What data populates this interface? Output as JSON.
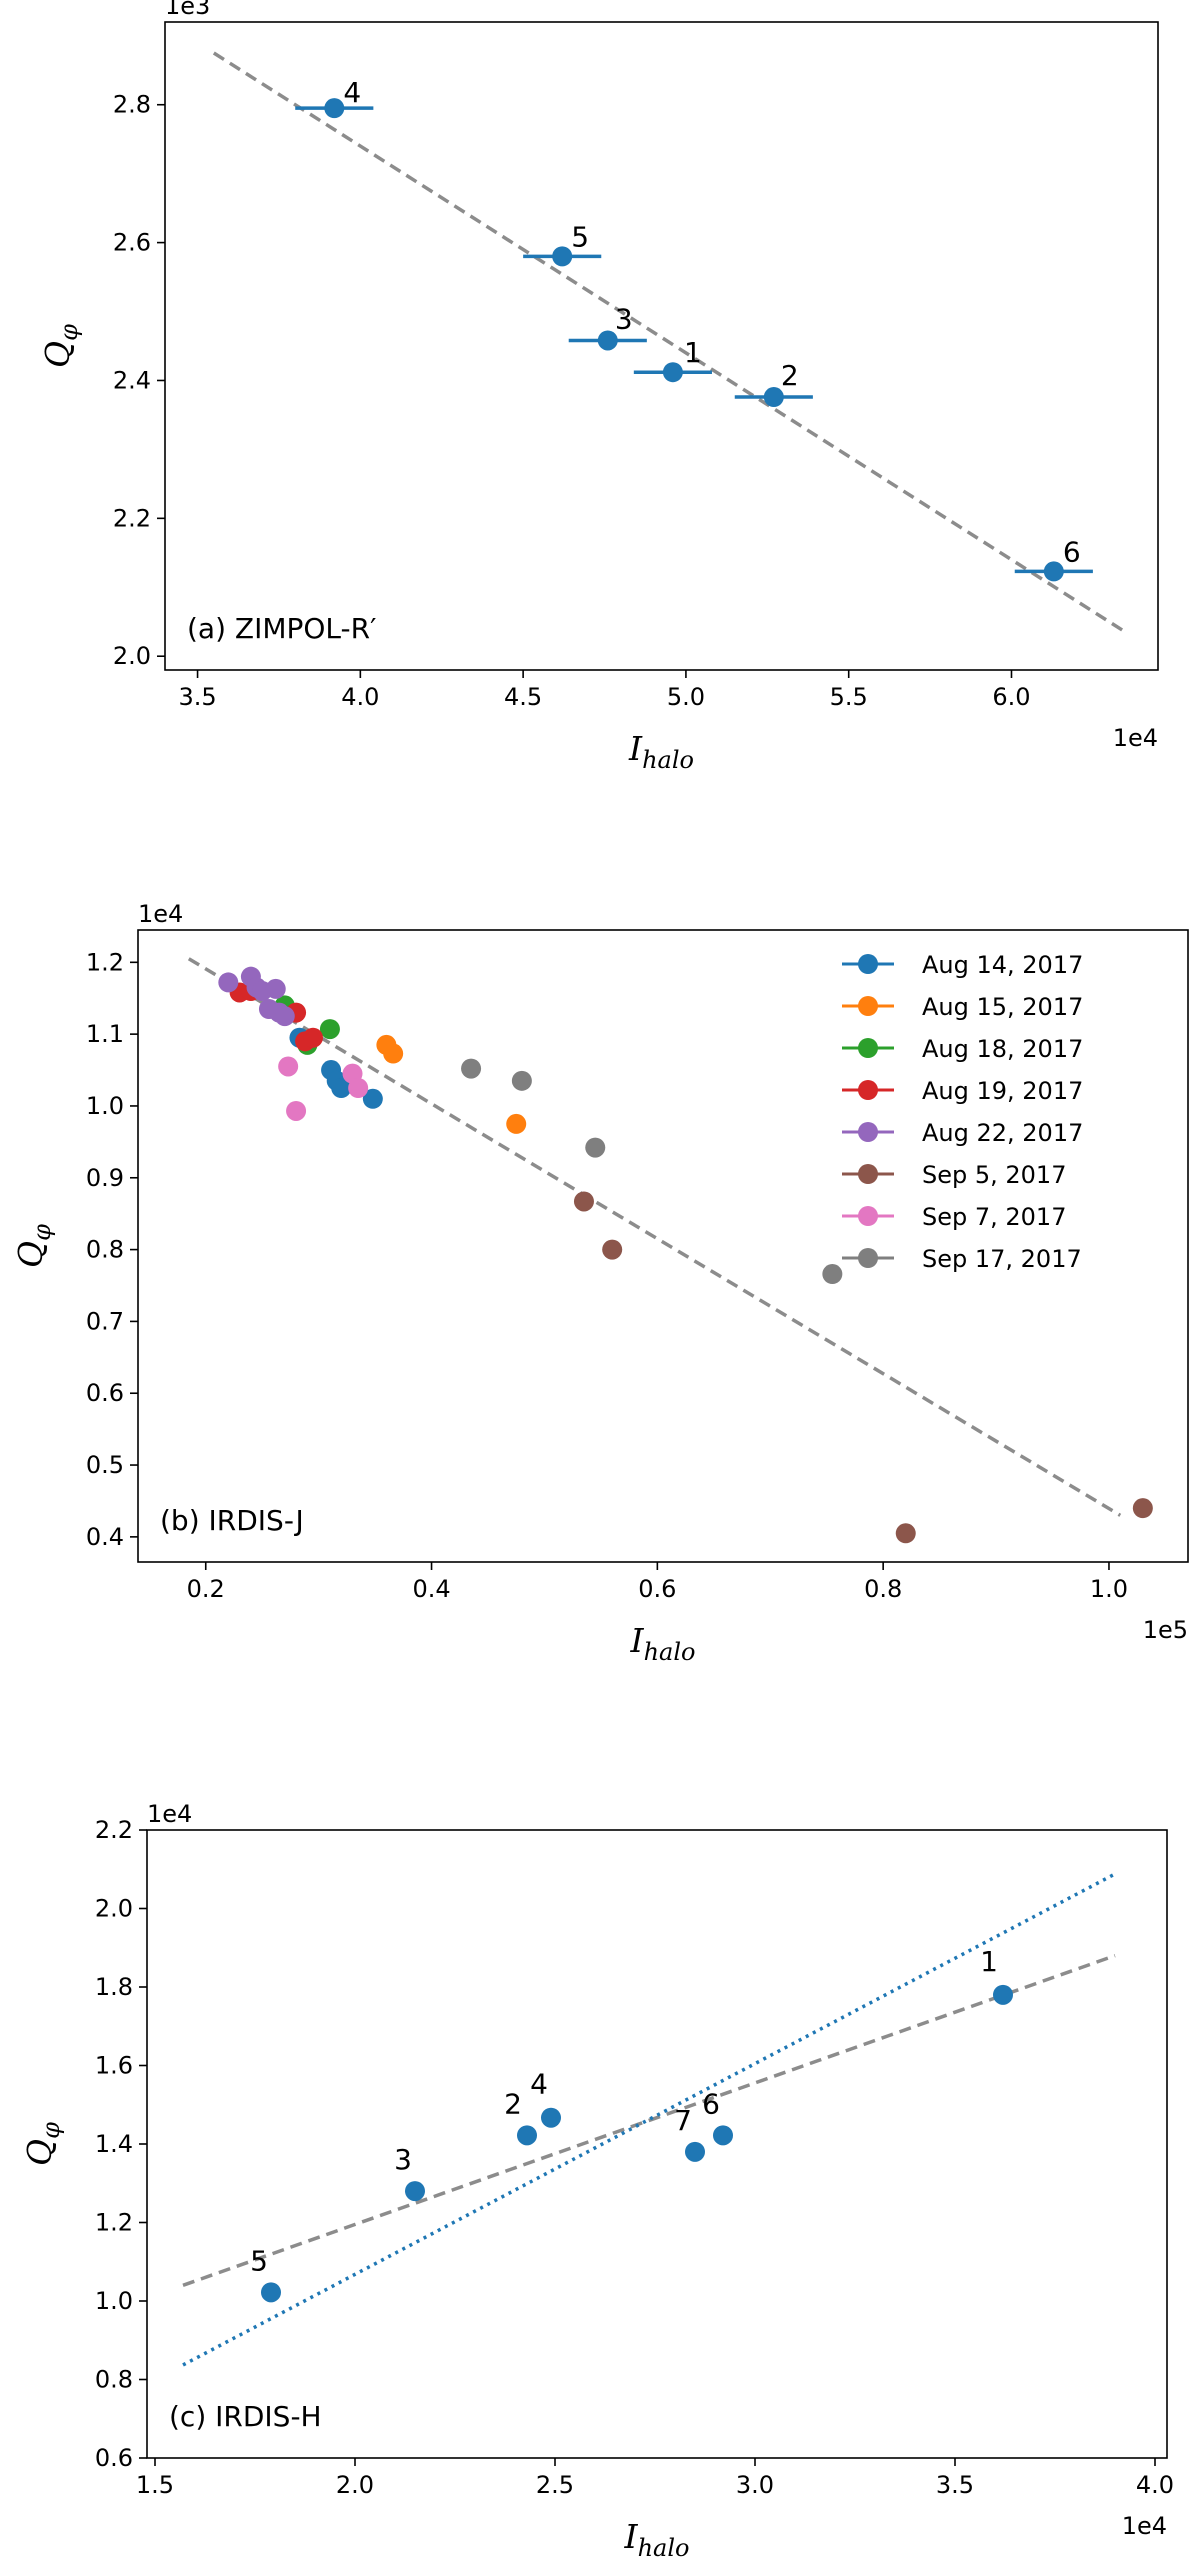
{
  "chart_data": [
    {
      "type": "scatter",
      "panel_label": "(a) ZIMPOL-R′",
      "xlabel_main": "I",
      "xlabel_sub": "halo",
      "ylabel_main": "Q",
      "ylabel_sub": "φ",
      "x_scale_label": "1e4",
      "y_scale_label": "1e3",
      "xlim": [
        3.4,
        6.45
      ],
      "ylim": [
        1.98,
        2.92
      ],
      "xticks": [
        3.5,
        4.0,
        4.5,
        5.0,
        5.5,
        6.0
      ],
      "xtick_labels": [
        "3.5",
        "4.0",
        "4.5",
        "5.0",
        "5.5",
        "6.0"
      ],
      "yticks": [
        2.0,
        2.2,
        2.4,
        2.6,
        2.8
      ],
      "ytick_labels": [
        "2.0",
        "2.2",
        "2.4",
        "2.6",
        "2.8"
      ],
      "marker_color": "#1f77b4",
      "fit_color": "#8c8c8c",
      "points": [
        {
          "label": "4",
          "x": 3.92,
          "y": 2.795,
          "xerr": 0.12
        },
        {
          "label": "5",
          "x": 4.62,
          "y": 2.58,
          "xerr": 0.12
        },
        {
          "label": "3",
          "x": 4.76,
          "y": 2.458,
          "xerr": 0.12
        },
        {
          "label": "1",
          "x": 4.96,
          "y": 2.412,
          "xerr": 0.12
        },
        {
          "label": "2",
          "x": 5.27,
          "y": 2.376,
          "xerr": 0.12
        },
        {
          "label": "6",
          "x": 6.13,
          "y": 2.123,
          "xerr": 0.12
        }
      ],
      "fit": [
        {
          "x": 3.55,
          "y": 2.875
        },
        {
          "x": 6.35,
          "y": 2.035
        }
      ]
    },
    {
      "type": "scatter",
      "panel_label": "(b) IRDIS-J",
      "xlabel_main": "I",
      "xlabel_sub": "halo",
      "ylabel_main": "Q",
      "ylabel_sub": "φ",
      "x_scale_label": "1e5",
      "y_scale_label": "1e4",
      "xlim": [
        0.14,
        1.07
      ],
      "ylim": [
        0.365,
        1.245
      ],
      "xticks": [
        0.2,
        0.4,
        0.6,
        0.8,
        1.0
      ],
      "xtick_labels": [
        "0.2",
        "0.4",
        "0.6",
        "0.8",
        "1.0"
      ],
      "yticks": [
        0.4,
        0.5,
        0.6,
        0.7,
        0.8,
        0.9,
        1.0,
        1.1,
        1.2
      ],
      "ytick_labels": [
        "0.4",
        "0.5",
        "0.6",
        "0.7",
        "0.8",
        "0.9",
        "1.0",
        "1.1",
        "1.2"
      ],
      "legend_position": "upper right",
      "fit_color": "#8c8c8c",
      "fit": [
        {
          "x": 0.185,
          "y": 1.205
        },
        {
          "x": 1.01,
          "y": 0.43
        }
      ],
      "series": [
        {
          "name": "Aug 14, 2017",
          "color": "#1f77b4",
          "points": [
            [
              0.283,
              1.095
            ],
            [
              0.311,
              1.05
            ],
            [
              0.316,
              1.035
            ],
            [
              0.32,
              1.025
            ],
            [
              0.348,
              1.01
            ]
          ]
        },
        {
          "name": "Aug 15, 2017",
          "color": "#ff7f0e",
          "points": [
            [
              0.36,
              1.085
            ],
            [
              0.366,
              1.073
            ],
            [
              0.475,
              0.975
            ]
          ]
        },
        {
          "name": "Aug 18, 2017",
          "color": "#2ca02c",
          "points": [
            [
              0.27,
              1.14
            ],
            [
              0.29,
              1.085
            ],
            [
              0.31,
              1.107
            ]
          ]
        },
        {
          "name": "Aug 19, 2017",
          "color": "#d62728",
          "points": [
            [
              0.23,
              1.158
            ],
            [
              0.24,
              1.16
            ],
            [
              0.28,
              1.13
            ],
            [
              0.288,
              1.09
            ],
            [
              0.295,
              1.095
            ]
          ]
        },
        {
          "name": "Aug 22, 2017",
          "color": "#9467bd",
          "points": [
            [
              0.22,
              1.172
            ],
            [
              0.24,
              1.18
            ],
            [
              0.245,
              1.165
            ],
            [
              0.25,
              1.16
            ],
            [
              0.256,
              1.135
            ],
            [
              0.262,
              1.163
            ],
            [
              0.265,
              1.13
            ],
            [
              0.27,
              1.125
            ]
          ]
        },
        {
          "name": "Sep 5, 2017",
          "color": "#8c564b",
          "points": [
            [
              0.535,
              0.867
            ],
            [
              0.56,
              0.8
            ],
            [
              0.82,
              0.405
            ],
            [
              1.03,
              0.44
            ]
          ]
        },
        {
          "name": "Sep 7, 2017",
          "color": "#e377c2",
          "points": [
            [
              0.273,
              1.055
            ],
            [
              0.28,
              0.993
            ],
            [
              0.33,
              1.045
            ],
            [
              0.335,
              1.025
            ]
          ]
        },
        {
          "name": "Sep 17, 2017",
          "color": "#7f7f7f",
          "points": [
            [
              0.435,
              1.052
            ],
            [
              0.48,
              1.035
            ],
            [
              0.545,
              0.942
            ],
            [
              0.755,
              0.766
            ]
          ]
        }
      ]
    },
    {
      "type": "scatter",
      "panel_label": "(c) IRDIS-H",
      "xlabel_main": "I",
      "xlabel_sub": "halo",
      "ylabel_main": "Q",
      "ylabel_sub": "φ",
      "x_scale_label": "1e4",
      "y_scale_label": "1e4",
      "xlim": [
        1.48,
        4.03
      ],
      "ylim": [
        0.6,
        2.2
      ],
      "xticks": [
        1.5,
        2.0,
        2.5,
        3.0,
        3.5,
        4.0
      ],
      "xtick_labels": [
        "1.5",
        "2.0",
        "2.5",
        "3.0",
        "3.5",
        "4.0"
      ],
      "yticks": [
        0.6,
        0.8,
        1.0,
        1.2,
        1.4,
        1.6,
        1.8,
        2.0,
        2.2
      ],
      "ytick_labels": [
        "0.6",
        "0.8",
        "1.0",
        "1.2",
        "1.4",
        "1.6",
        "1.8",
        "2.0",
        "2.2"
      ],
      "marker_color": "#1f77b4",
      "fit_color": "#8c8c8c",
      "fit2_color": "#1f77b4",
      "points": [
        {
          "label": "5",
          "x": 1.79,
          "y": 1.022
        },
        {
          "label": "3",
          "x": 2.15,
          "y": 1.28
        },
        {
          "label": "2",
          "x": 2.43,
          "y": 1.422
        },
        {
          "label": "4",
          "x": 2.49,
          "y": 1.467
        },
        {
          "label": "7",
          "x": 2.85,
          "y": 1.38
        },
        {
          "label": "6",
          "x": 2.92,
          "y": 1.422
        },
        {
          "label": "1",
          "x": 3.62,
          "y": 1.78
        }
      ],
      "fit": [
        {
          "x": 1.57,
          "y": 1.04
        },
        {
          "x": 3.9,
          "y": 1.88
        }
      ],
      "fit2": [
        {
          "x": 1.57,
          "y": 0.837
        },
        {
          "x": 3.9,
          "y": 2.088
        }
      ]
    }
  ]
}
